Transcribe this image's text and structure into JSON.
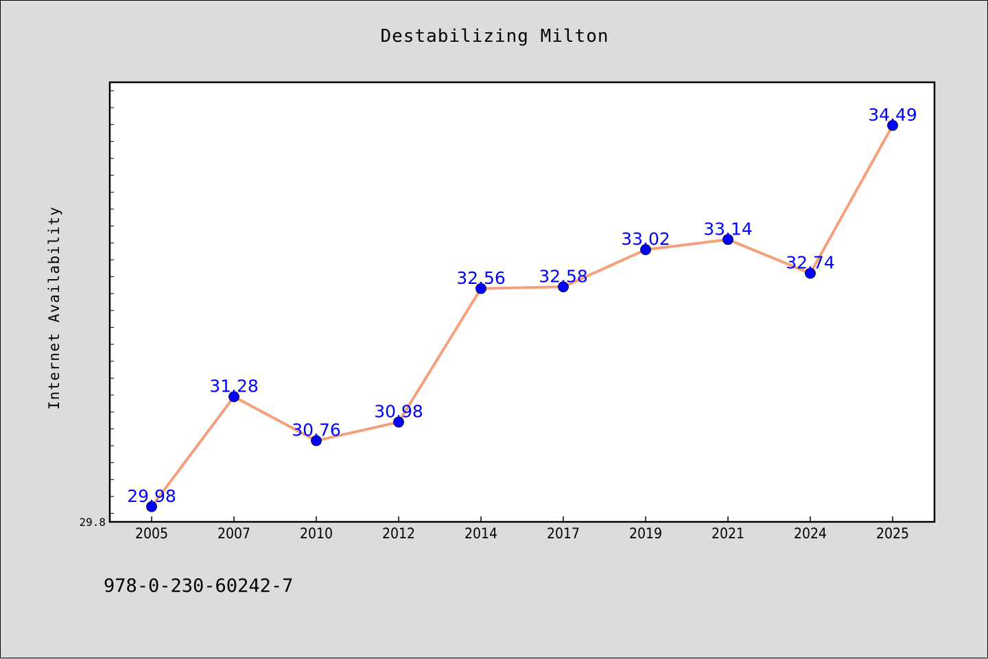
{
  "chart_data": {
    "type": "line",
    "title": "Destabilizing Milton",
    "xlabel": "",
    "ylabel": "Internet Availability",
    "categories": [
      "2005",
      "2007",
      "2010",
      "2012",
      "2014",
      "2017",
      "2019",
      "2021",
      "2024",
      "2025"
    ],
    "values": [
      29.98,
      31.28,
      30.76,
      30.98,
      32.56,
      32.58,
      33.02,
      33.14,
      32.74,
      34.49
    ],
    "data_labels": [
      "29.98",
      "31.28",
      "30.76",
      "30.98",
      "32.56",
      "32.58",
      "33.02",
      "33.14",
      "32.74",
      "34.49"
    ],
    "ytick_labels": [
      "29.8"
    ],
    "ylim": [
      29.8,
      35.0
    ],
    "grid": false,
    "legend": "none",
    "line_color": "#f5a07c",
    "marker_color": "#0000ff",
    "label_color": "#0000ff"
  },
  "footer": "978-0-230-60242-7"
}
